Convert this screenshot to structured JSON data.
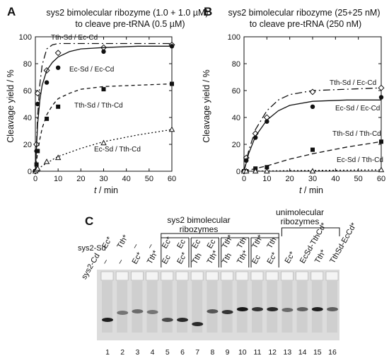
{
  "panels": {
    "a": "A",
    "b": "B",
    "c": "C"
  },
  "chart_data": [
    {
      "type": "line",
      "title_line1": "sys2 bimolecular ribozyme (1.0 + 1.0 µM)",
      "title_line2": "to cleave pre-tRNA (0.5 µM)",
      "xlabel_italic": "t",
      "xlabel_rest": " / min",
      "ylabel": "Cleavage yield / %",
      "xlim": [
        0,
        60
      ],
      "ylim": [
        0,
        100
      ],
      "xticks": [
        0,
        10,
        20,
        30,
        40,
        50,
        60
      ],
      "yticks": [
        0,
        20,
        40,
        60,
        80,
        100
      ],
      "series": [
        {
          "name": "Tth-Sd / Ec-Cd",
          "marker": "open-diamond",
          "dash": "10,4,2,4",
          "x": [
            0,
            0.5,
            1,
            5,
            10,
            30,
            60
          ],
          "y": [
            0,
            20,
            58,
            75,
            88,
            92,
            94
          ],
          "fit_x": [
            0,
            1,
            2,
            3,
            5,
            7.5,
            10,
            15,
            20,
            30,
            45,
            60
          ],
          "fit_y": [
            0,
            41,
            65,
            79,
            91,
            94,
            95,
            95,
            95,
            95,
            95,
            95
          ]
        },
        {
          "name": "Ec-Sd / Ec-Cd",
          "marker": "filled-circle",
          "dash": "",
          "x": [
            0,
            0.5,
            1,
            5,
            10,
            30,
            60
          ],
          "y": [
            0,
            15,
            50,
            66,
            77,
            89,
            93
          ],
          "fit_x": [
            0,
            1,
            2,
            3,
            5,
            7.5,
            10,
            15,
            20,
            30,
            45,
            60
          ],
          "fit_y": [
            0,
            35,
            53,
            64,
            75,
            81,
            85,
            89,
            91,
            92,
            93,
            93
          ]
        },
        {
          "name": "Tth-Sd / Tth-Cd",
          "marker": "filled-square",
          "dash": "5,4",
          "x": [
            0,
            0.5,
            1,
            5,
            10,
            30,
            60
          ],
          "y": [
            0,
            5,
            15,
            39,
            48,
            61,
            65
          ],
          "fit_x": [
            0,
            1,
            2,
            3,
            5,
            7.5,
            10,
            15,
            20,
            30,
            45,
            60
          ],
          "fit_y": [
            0,
            14,
            24,
            32,
            42,
            49,
            54,
            58,
            61,
            63,
            64,
            65
          ]
        },
        {
          "name": "Ec-Sd / Tth-Cd",
          "marker": "open-triangle",
          "dash": "2,3",
          "x": [
            0,
            0.5,
            1,
            5,
            10,
            30,
            60
          ],
          "y": [
            0,
            1,
            2,
            7,
            10,
            21,
            31
          ],
          "fit_x": [
            0,
            1,
            2,
            3,
            5,
            7.5,
            10,
            15,
            20,
            30,
            45,
            60
          ],
          "fit_y": [
            0,
            1.5,
            2.5,
            4,
            6,
            8.5,
            11,
            14,
            17,
            22,
            27,
            31
          ]
        }
      ]
    },
    {
      "type": "line",
      "title_line1": "sys2 bimolecular ribozyme (25+25 nM)",
      "title_line2": "to cleave pre-tRNA (250 nM)",
      "xlabel_italic": "t",
      "xlabel_rest": " / min",
      "ylabel": "Cleavage yield / %",
      "xlim": [
        0,
        60
      ],
      "ylim": [
        0,
        100
      ],
      "xticks": [
        0,
        10,
        20,
        30,
        40,
        50,
        60
      ],
      "yticks": [
        0,
        20,
        40,
        60,
        80,
        100
      ],
      "series": [
        {
          "name": "Tth-Sd / Ec-Cd",
          "marker": "open-diamond",
          "dash": "10,4,2,4",
          "x": [
            0,
            1,
            5,
            10,
            30,
            60
          ],
          "y": [
            0,
            10,
            28,
            40,
            59,
            62
          ],
          "fit_x": [
            0,
            2,
            5,
            10,
            15,
            20,
            30,
            45,
            60
          ],
          "fit_y": [
            0,
            15,
            31,
            45,
            53,
            57,
            60,
            61,
            62
          ]
        },
        {
          "name": "Ec-Sd / Ec-Cd",
          "marker": "filled-circle",
          "dash": "",
          "x": [
            0,
            1,
            5,
            10,
            30,
            60
          ],
          "y": [
            0,
            8,
            25,
            37,
            48,
            55
          ],
          "fit_x": [
            0,
            2,
            5,
            10,
            15,
            20,
            30,
            45,
            60
          ],
          "fit_y": [
            0,
            13,
            26,
            38,
            45,
            49,
            52,
            53,
            53
          ]
        },
        {
          "name": "Tth-Sd / Tth-Cd",
          "marker": "filled-square",
          "dash": "7,4",
          "x": [
            0,
            1,
            5,
            10,
            30,
            60
          ],
          "y": [
            0,
            0,
            2,
            3,
            16,
            22
          ],
          "fit_x": [
            0,
            5,
            10,
            20,
            30,
            45,
            60
          ],
          "fit_y": [
            0,
            2,
            4,
            9,
            13,
            18,
            22
          ]
        },
        {
          "name": "Ec-Sd / Tth-Cd",
          "marker": "open-triangle",
          "dash": "2,3",
          "x": [
            0,
            1,
            5,
            10,
            30,
            60
          ],
          "y": [
            0,
            0,
            0,
            0,
            0,
            1
          ],
          "fit_x": [
            0,
            10,
            20,
            30,
            45,
            60
          ],
          "fit_y": [
            0,
            0.2,
            0.4,
            0.6,
            0.8,
            1
          ]
        }
      ]
    }
  ],
  "gel": {
    "group_bimolecular_line1": "sys2 bimolecular",
    "group_bimolecular_line2": "ribozymes",
    "group_unimolecular_line1": "unimolecular",
    "group_unimolecular_line2": "ribozymes",
    "row_sd_label": "sys2-Sd",
    "row_cd_label": "sys2-Cd",
    "sd_labels": [
      "Ec*",
      "Tth*",
      "–",
      "–",
      "Ec*",
      "Ec",
      "Ec",
      "Ec",
      "Tth*",
      "Tth",
      "Tth*",
      "Tth",
      "Ec*",
      "EcSd-TthCd*",
      "Tth*",
      "TthSd-EcCd*"
    ],
    "cd_labels": [
      "–",
      "–",
      "Ec*",
      "Tth*",
      "Ec",
      "Ec*",
      "Tth",
      "Tth*",
      "Tth",
      "Tth*",
      "Ec",
      "Ec*",
      "",
      "",
      "",
      ""
    ],
    "lane_numbers": [
      "1",
      "2",
      "3",
      "4",
      "5",
      "6",
      "7",
      "8",
      "9",
      "10",
      "11",
      "12",
      "13",
      "14",
      "15",
      "16"
    ],
    "band_intensity": [
      0.95,
      0.55,
      0.6,
      0.55,
      0.75,
      0.9,
      0.9,
      0.7,
      0.85,
      0.98,
      0.85,
      0.9,
      0.6,
      0.65,
      0.95,
      0.65
    ]
  }
}
